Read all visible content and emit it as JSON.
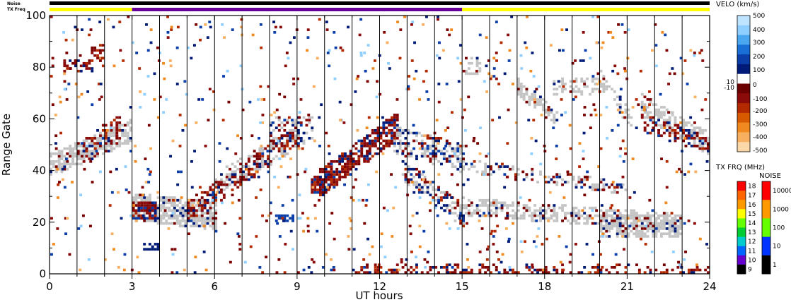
{
  "chart_data": {
    "type": "heatmap",
    "xlabel": "UT hours",
    "ylabel": "Range Gate",
    "xlim": [
      0,
      24
    ],
    "ylim": [
      0,
      100
    ],
    "x_ticks": [
      "0",
      "3",
      "6",
      "9",
      "12",
      "15",
      "18",
      "21",
      "24"
    ],
    "x_tick_values": [
      0,
      3,
      6,
      9,
      12,
      15,
      18,
      21,
      24
    ],
    "y_ticks": [
      "0",
      "20",
      "40",
      "60",
      "80",
      "100"
    ],
    "y_tick_values": [
      0,
      20,
      40,
      60,
      80,
      100
    ],
    "top_bars": {
      "noise_label": "Noise",
      "txfreq_label": "TX Freq",
      "txfreq_segments": [
        {
          "start": 0,
          "end": 3,
          "color": "#ffff00"
        },
        {
          "start": 3,
          "end": 15,
          "color": "#660099"
        },
        {
          "start": 15,
          "end": 24,
          "color": "#ffff00"
        }
      ]
    },
    "velocity_colorbar": {
      "title": "VELO (km/s)",
      "tick_labels": [
        "500",
        "400",
        "300",
        "200",
        "100",
        "10",
        "0",
        "-10",
        "-100",
        "-200",
        "-300",
        "-400",
        "-500"
      ],
      "colors": [
        "#bfe4ff",
        "#8fcfff",
        "#49a6ef",
        "#1a6fd6",
        "#0b3ea8",
        "#001a78",
        "#ffffff",
        "#6b0000",
        "#8b0a0a",
        "#b42a00",
        "#d85a00",
        "#f08a20",
        "#f8b060",
        "#fcd8a8"
      ]
    },
    "txfreq_colorbar": {
      "title": "TX FRQ (MHz)",
      "tick_labels": [
        "18",
        "17",
        "16",
        "15",
        "14",
        "13",
        "12",
        "11",
        "10",
        "9"
      ],
      "colors": [
        "#ff0000",
        "#ff6600",
        "#ff9900",
        "#ffff00",
        "#66ff00",
        "#00cc33",
        "#00cccc",
        "#0066ff",
        "#6600cc",
        "#000000"
      ]
    },
    "noise_colorbar": {
      "title": "NOISE",
      "tick_labels": [
        "10000",
        "1000",
        "100",
        "10",
        "1"
      ],
      "colors": [
        "#ff0000",
        "#ff9900",
        "#66ff00",
        "#0033ff",
        "#000000"
      ]
    },
    "regions": [
      {
        "kind": "ground_scatter",
        "desc": "band rising from gate 40 to 55",
        "t": [
          0,
          2.9
        ],
        "g": [
          38,
          58
        ]
      },
      {
        "kind": "ground_scatter",
        "desc": "low band 3-6h",
        "t": [
          3,
          6
        ],
        "g": [
          20,
          32
        ]
      },
      {
        "kind": "ground_scatter",
        "desc": "rising band 6-9h",
        "t": [
          6,
          9
        ],
        "g": [
          30,
          60
        ]
      },
      {
        "kind": "ground_scatter",
        "desc": "descending band 12-22h",
        "t": [
          12.5,
          22.5
        ],
        "g": [
          15,
          55
        ]
      },
      {
        "kind": "ground_scatter",
        "desc": "upper band 16-20h",
        "t": [
          17,
          20
        ],
        "g": [
          58,
          78
        ]
      },
      {
        "kind": "ground_scatter",
        "desc": "upper band 21-24h",
        "t": [
          21,
          24
        ],
        "g": [
          45,
          70
        ]
      },
      {
        "kind": "ionospheric",
        "desc": "negative velocity patches",
        "t": [
          9.5,
          12.5
        ],
        "g": [
          32,
          62
        ]
      },
      {
        "kind": "ionospheric",
        "desc": "near-range echoes",
        "t": [
          9,
          24
        ],
        "g": [
          0,
          8
        ]
      }
    ]
  }
}
